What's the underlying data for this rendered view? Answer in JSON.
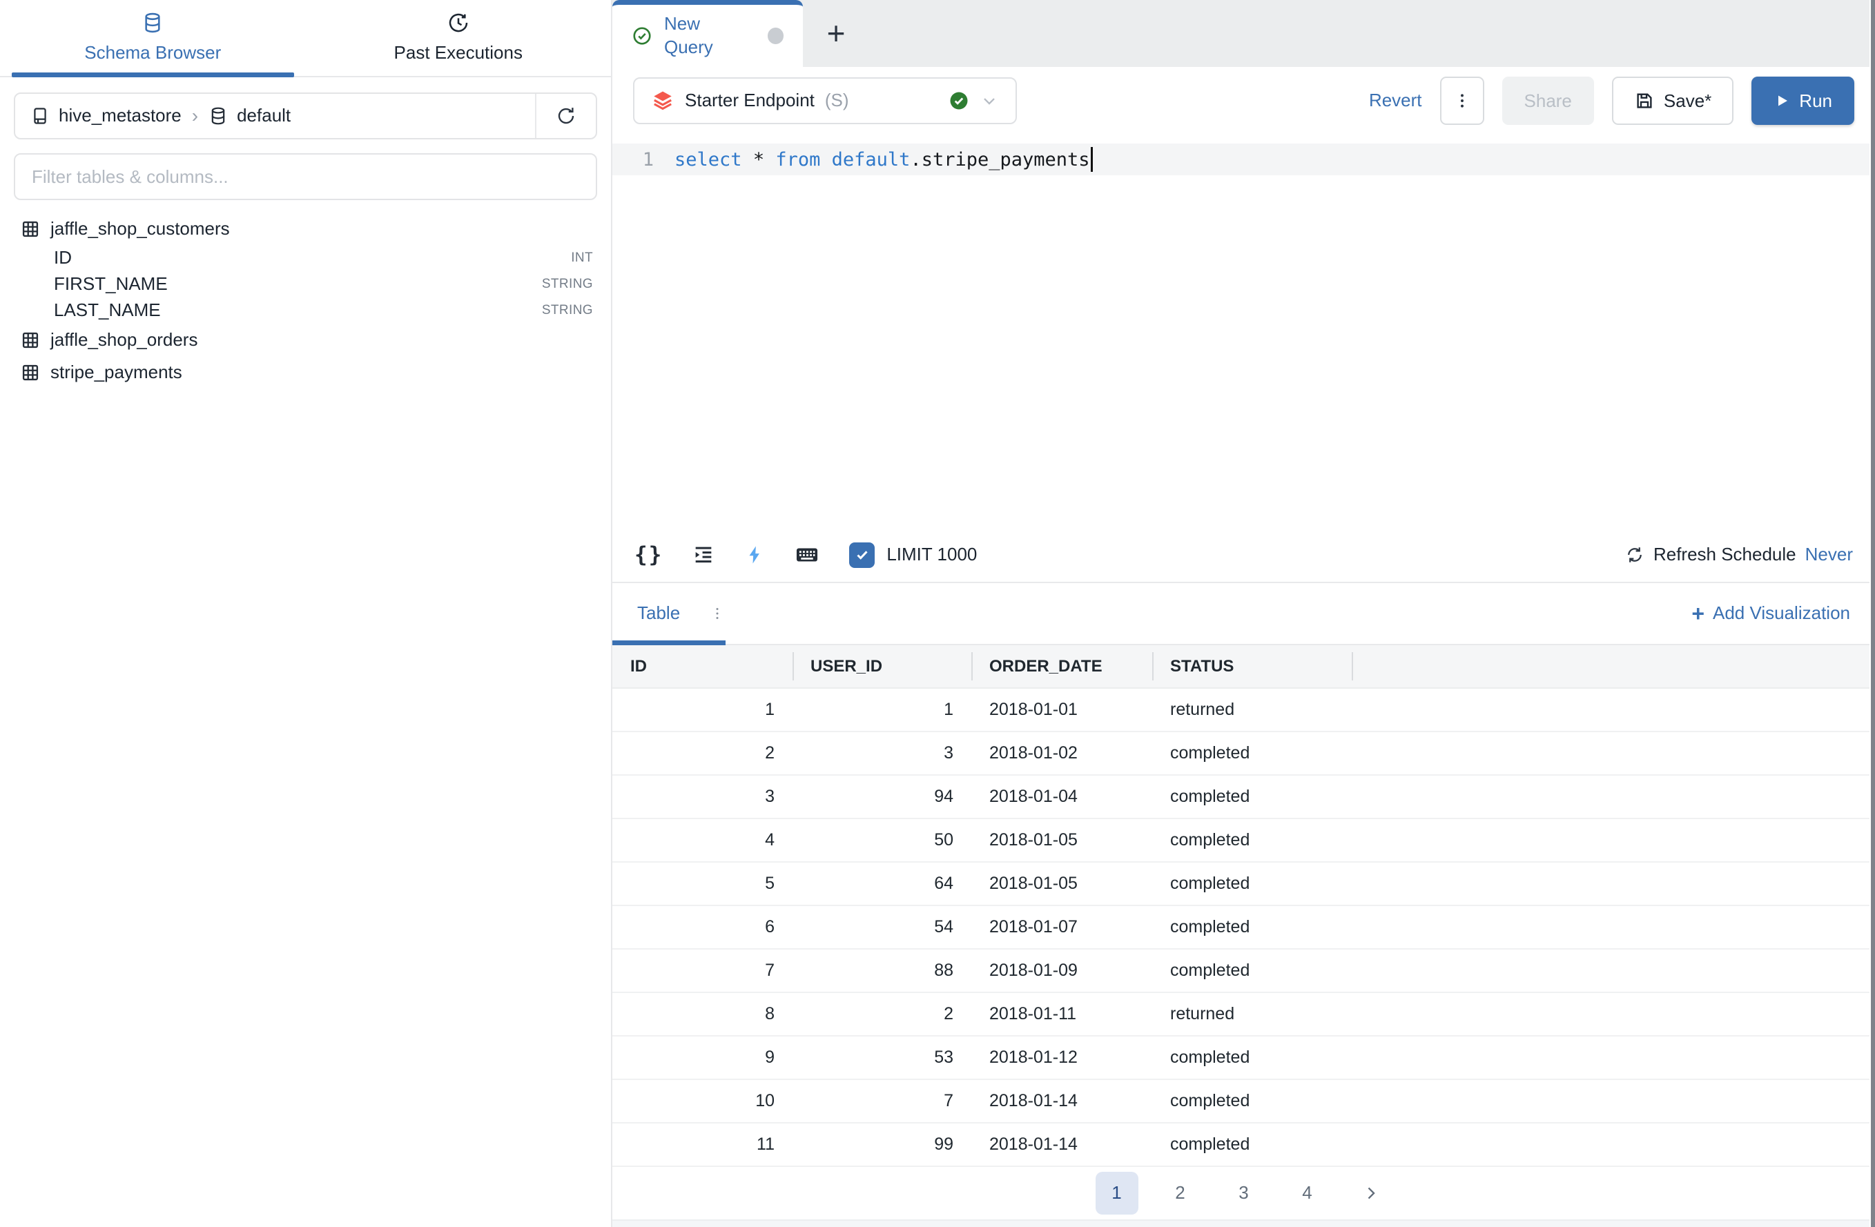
{
  "colors": {
    "accent": "#3a70b2",
    "success": "#2e7d32",
    "coral": "#f4594d",
    "keyword": "#2f78c9",
    "page_active_bg": "#dfe6f3",
    "page_active_text": "#2a4d86"
  },
  "sidebar": {
    "tabs": [
      {
        "label": "Schema Browser"
      },
      {
        "label": "Past Executions"
      }
    ],
    "breadcrumb": {
      "catalog": "hive_metastore",
      "separator": "›",
      "schema": "default"
    },
    "filter_placeholder": "Filter tables & columns...",
    "tree": [
      {
        "name": "jaffle_shop_customers",
        "columns": [
          {
            "name": "ID",
            "type": "INT"
          },
          {
            "name": "FIRST_NAME",
            "type": "STRING"
          },
          {
            "name": "LAST_NAME",
            "type": "STRING"
          }
        ]
      },
      {
        "name": "jaffle_shop_orders",
        "columns": []
      },
      {
        "name": "stripe_payments",
        "columns": []
      }
    ]
  },
  "query_tabs": {
    "active_label": "New Query",
    "add_label": "+"
  },
  "toolbar": {
    "endpoint": {
      "name": "Starter Endpoint",
      "size_label": "(S)"
    },
    "revert_label": "Revert",
    "share_label": "Share",
    "save_label": "Save*",
    "run_label": "Run"
  },
  "editor": {
    "line_number": "1",
    "sql_text": "select * from default.stripe_payments",
    "tokens": [
      {
        "text": "select",
        "type": "keyword"
      },
      {
        "text": " ",
        "type": "plain"
      },
      {
        "text": "*",
        "type": "plain"
      },
      {
        "text": " ",
        "type": "plain"
      },
      {
        "text": "from",
        "type": "keyword"
      },
      {
        "text": " ",
        "type": "plain"
      },
      {
        "text": "default",
        "type": "keyword"
      },
      {
        "text": ".",
        "type": "plain"
      },
      {
        "text": "stripe_payments",
        "type": "plain"
      }
    ]
  },
  "editor_footer": {
    "limit_label": "LIMIT 1000",
    "limit_checked": true,
    "refresh_schedule_label": "Refresh Schedule",
    "refresh_value": "Never"
  },
  "results": {
    "tab_label": "Table",
    "add_visualization_plus": "+",
    "add_visualization_label": "Add Visualization",
    "columns": [
      "ID",
      "USER_ID",
      "ORDER_DATE",
      "STATUS"
    ],
    "rows": [
      [
        "1",
        "1",
        "2018-01-01",
        "returned"
      ],
      [
        "2",
        "3",
        "2018-01-02",
        "completed"
      ],
      [
        "3",
        "94",
        "2018-01-04",
        "completed"
      ],
      [
        "4",
        "50",
        "2018-01-05",
        "completed"
      ],
      [
        "5",
        "64",
        "2018-01-05",
        "completed"
      ],
      [
        "6",
        "54",
        "2018-01-07",
        "completed"
      ],
      [
        "7",
        "88",
        "2018-01-09",
        "completed"
      ],
      [
        "8",
        "2",
        "2018-01-11",
        "returned"
      ],
      [
        "9",
        "53",
        "2018-01-12",
        "completed"
      ],
      [
        "10",
        "7",
        "2018-01-14",
        "completed"
      ],
      [
        "11",
        "99",
        "2018-01-14",
        "completed"
      ]
    ],
    "pagination": {
      "pages": [
        "1",
        "2",
        "3",
        "4"
      ],
      "active": "1",
      "next": "›"
    }
  }
}
